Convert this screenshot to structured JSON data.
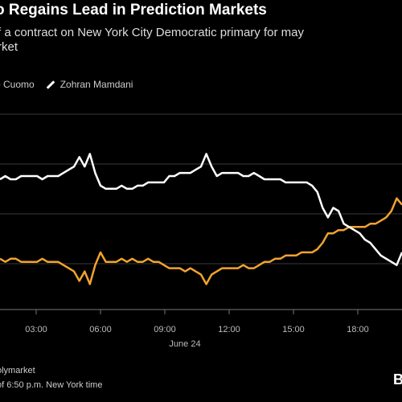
{
  "header": {
    "title": "o Regains Lead in Prediction Markets",
    "subtitle_line1": "f a contract on New York City Democratic primary for may",
    "subtitle_line2": "rket"
  },
  "legend": {
    "items": [
      {
        "label": "o Cuomo",
        "color": "#f2a32e"
      },
      {
        "label": "Zohran Mamdani",
        "color": "#ffffff"
      }
    ]
  },
  "footer": {
    "source": "olymarket",
    "note": "of 6:50 p.m. New York time"
  },
  "brand": {
    "logo_text": "B"
  },
  "chart_data": {
    "type": "line",
    "x_ticks": [
      "03:00",
      "06:00",
      "09:00",
      "12:00",
      "15:00",
      "18:00"
    ],
    "x_date_label": "June 24",
    "series": [
      {
        "name": "Cuomo",
        "color": "#f2a32e",
        "x": [
          0,
          0.25,
          0.5,
          0.75,
          1,
          1.25,
          1.5,
          1.75,
          2,
          2.25,
          2.5,
          2.75,
          3,
          3.25,
          3.5,
          3.75,
          4,
          4.25,
          4.5,
          4.75,
          5,
          5.25,
          5.5,
          5.75,
          6,
          6.25,
          6.5,
          6.75,
          7,
          7.25,
          7.5,
          7.75,
          8,
          8.25,
          8.5,
          8.75,
          9,
          9.25,
          9.5,
          9.75,
          10,
          10.25,
          10.5,
          10.75,
          11,
          11.25,
          11.5,
          11.75,
          12,
          12.25,
          12.5,
          12.75,
          13,
          13.25,
          13.5,
          13.75,
          14,
          14.25,
          14.5,
          14.75,
          15,
          15.25,
          15.5,
          15.75,
          16,
          16.25,
          16.5,
          16.75,
          17,
          17.25,
          17.5,
          17.75,
          18,
          18.25,
          18.5,
          18.75,
          19
        ],
        "values": [
          36,
          35,
          36,
          36,
          35,
          35,
          35,
          35,
          36,
          35,
          35,
          35,
          34,
          33,
          32,
          29,
          32,
          28,
          34,
          38,
          35,
          35,
          35,
          36,
          35,
          36,
          35,
          35,
          36,
          35,
          35,
          34,
          33,
          33,
          33,
          32,
          33,
          32,
          31,
          28,
          31,
          32,
          33,
          33,
          33,
          33,
          34,
          33,
          33,
          34,
          35,
          35,
          36,
          36,
          37,
          37,
          37,
          38,
          38,
          38,
          39,
          41,
          44,
          44,
          45,
          45,
          46,
          46,
          46,
          46,
          47,
          47,
          48,
          49,
          51,
          55,
          53
        ]
      },
      {
        "name": "Mamdani",
        "color": "#ffffff",
        "x": [
          0,
          0.25,
          0.5,
          0.75,
          1,
          1.25,
          1.5,
          1.75,
          2,
          2.25,
          2.5,
          2.75,
          3,
          3.25,
          3.5,
          3.75,
          4,
          4.25,
          4.5,
          4.75,
          5,
          5.25,
          5.5,
          5.75,
          6,
          6.25,
          6.5,
          6.75,
          7,
          7.25,
          7.5,
          7.75,
          8,
          8.25,
          8.5,
          8.75,
          9,
          9.25,
          9.5,
          9.75,
          10,
          10.25,
          10.5,
          10.75,
          11,
          11.25,
          11.5,
          11.75,
          12,
          12.25,
          12.5,
          12.75,
          13,
          13.25,
          13.5,
          13.75,
          14,
          14.25,
          14.5,
          14.75,
          15,
          15.25,
          15.5,
          15.75,
          16,
          16.25,
          16.5,
          16.75,
          17,
          17.25,
          17.5,
          17.75,
          18,
          18.25,
          18.5,
          18.75,
          19
        ],
        "values": [
          61,
          62,
          61,
          61,
          62,
          62,
          62,
          62,
          61,
          62,
          62,
          62,
          63,
          64,
          65,
          68,
          65,
          69,
          63,
          59,
          58,
          58,
          58,
          59,
          58,
          58,
          59,
          59,
          60,
          60,
          60,
          60,
          62,
          62,
          63,
          63,
          63,
          64,
          65,
          69,
          65,
          62,
          63,
          63,
          63,
          63,
          62,
          62,
          63,
          62,
          61,
          61,
          61,
          61,
          60,
          60,
          60,
          60,
          60,
          59,
          57,
          52,
          49,
          52,
          51,
          47,
          46,
          45,
          44,
          42,
          41,
          39,
          37,
          36,
          35,
          34,
          38
        ]
      }
    ],
    "ylim": [
      20,
      82
    ],
    "grid": true
  }
}
